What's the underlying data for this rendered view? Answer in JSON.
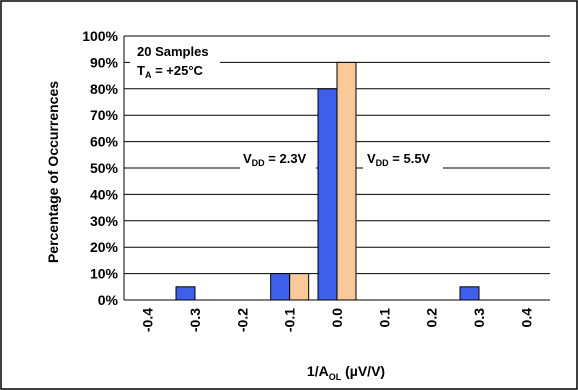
{
  "chart_data": {
    "type": "bar",
    "categories": [
      "-0.4",
      "-0.3",
      "-0.2",
      "-0.1",
      "0.0",
      "0.1",
      "0.2",
      "0.3",
      "0.4"
    ],
    "series": [
      {
        "name": "V_DD = 2.3V",
        "color": "#3f5eea",
        "values": [
          0,
          5,
          0,
          10,
          80,
          0,
          0,
          5,
          0
        ]
      },
      {
        "name": "V_DD = 5.5V",
        "color": "#f9c99a",
        "values": [
          0,
          0,
          0,
          10,
          90,
          0,
          0,
          0,
          0
        ]
      }
    ],
    "ylim": [
      0,
      100
    ],
    "yticks": [
      "0%",
      "10%",
      "20%",
      "30%",
      "40%",
      "50%",
      "60%",
      "70%",
      "80%",
      "90%",
      "100%"
    ],
    "ylabel": "Percentage of Occurrences",
    "xlabel": {
      "main": "1/A",
      "sub": "OL",
      "units": " (µV/V)"
    },
    "grid": true,
    "annotations": {
      "samples": "20 Samples",
      "temp": {
        "main": "T",
        "sub": "A",
        "rest": " = +25°C"
      },
      "vdd_low": {
        "main": "V",
        "sub": "DD",
        "rest": " = 2.3V"
      },
      "vdd_high": {
        "main": "V",
        "sub": "DD",
        "rest": " = 5.5V"
      }
    }
  }
}
